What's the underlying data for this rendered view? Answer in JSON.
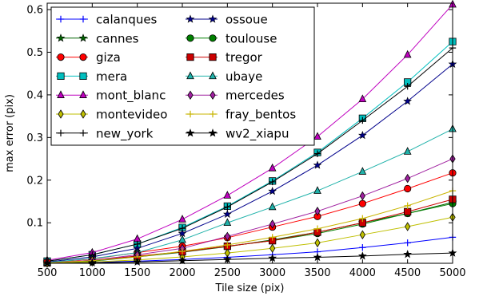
{
  "chart_data": {
    "type": "line",
    "xlabel": "Tile size (pix)",
    "ylabel": "max error (pix)",
    "xlim": [
      500,
      5000
    ],
    "ylim": [
      0.005,
      0.615
    ],
    "xticks": [
      "500",
      "1000",
      "1500",
      "2000",
      "2500",
      "3000",
      "3500",
      "4000",
      "4500",
      "5000"
    ],
    "yticks": [
      "0.1",
      "0.2",
      "0.3",
      "0.4",
      "0.5",
      "0.6"
    ],
    "grid": false,
    "legend_position": "upper-left",
    "legend_columns": 2,
    "x": [
      500,
      1000,
      1500,
      2000,
      2500,
      3000,
      3500,
      4000,
      4500,
      5000
    ],
    "series": [
      {
        "name": "calanques",
        "color": "#0000ff",
        "marker": "plus",
        "values": [
          0.005,
          0.007,
          0.01,
          0.014,
          0.019,
          0.025,
          0.032,
          0.042,
          0.053,
          0.066
        ]
      },
      {
        "name": "cannes",
        "color": "#006400",
        "marker": "star",
        "values": [
          0.006,
          0.01,
          0.02,
          0.031,
          0.044,
          0.06,
          0.078,
          0.1,
          0.122,
          0.148
        ]
      },
      {
        "name": "giza",
        "color": "#ff0000",
        "marker": "circle",
        "values": [
          0.007,
          0.015,
          0.03,
          0.045,
          0.065,
          0.09,
          0.115,
          0.145,
          0.18,
          0.217
        ]
      },
      {
        "name": "mera",
        "color": "#00bfbf",
        "marker": "square",
        "values": [
          0.01,
          0.025,
          0.05,
          0.089,
          0.139,
          0.198,
          0.265,
          0.345,
          0.43,
          0.525
        ]
      },
      {
        "name": "mont_blanc",
        "color": "#bf00bf",
        "marker": "triangle",
        "values": [
          0.012,
          0.03,
          0.062,
          0.108,
          0.164,
          0.228,
          0.302,
          0.39,
          0.494,
          0.612
        ]
      },
      {
        "name": "montevideo",
        "color": "#bfbf00",
        "marker": "diamond",
        "values": [
          0.005,
          0.008,
          0.013,
          0.02,
          0.029,
          0.04,
          0.053,
          0.072,
          0.091,
          0.113
        ]
      },
      {
        "name": "new_york",
        "color": "#000000",
        "marker": "plus",
        "values": [
          0.01,
          0.025,
          0.05,
          0.087,
          0.137,
          0.196,
          0.262,
          0.34,
          0.42,
          0.51
        ]
      },
      {
        "name": "ossoue",
        "color": "#00008b",
        "marker": "star",
        "values": [
          0.008,
          0.02,
          0.04,
          0.075,
          0.12,
          0.174,
          0.235,
          0.305,
          0.385,
          0.472
        ]
      },
      {
        "name": "toulouse",
        "color": "#008000",
        "marker": "circle",
        "values": [
          0.006,
          0.011,
          0.021,
          0.032,
          0.045,
          0.058,
          0.075,
          0.097,
          0.122,
          0.145
        ]
      },
      {
        "name": "tregor",
        "color": "#cc0000",
        "marker": "square",
        "values": [
          0.006,
          0.012,
          0.022,
          0.032,
          0.045,
          0.058,
          0.078,
          0.1,
          0.126,
          0.155
        ]
      },
      {
        "name": "ubaye",
        "color": "#20b2aa",
        "marker": "triangle",
        "values": [
          0.007,
          0.016,
          0.03,
          0.06,
          0.1,
          0.137,
          0.175,
          0.22,
          0.267,
          0.32
        ]
      },
      {
        "name": "mercedes",
        "color": "#a020a0",
        "marker": "diamond",
        "values": [
          0.006,
          0.012,
          0.025,
          0.04,
          0.068,
          0.097,
          0.127,
          0.163,
          0.204,
          0.25
        ]
      },
      {
        "name": "fray_bentos",
        "color": "#c8b400",
        "marker": "plus",
        "values": [
          0.006,
          0.011,
          0.02,
          0.033,
          0.048,
          0.066,
          0.086,
          0.11,
          0.14,
          0.175
        ]
      },
      {
        "name": "wv2_xiapu",
        "color": "#000000",
        "marker": "star",
        "values": [
          0.005,
          0.006,
          0.008,
          0.011,
          0.014,
          0.017,
          0.019,
          0.022,
          0.026,
          0.029
        ]
      }
    ]
  }
}
